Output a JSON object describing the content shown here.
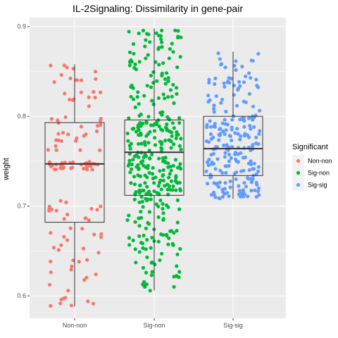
{
  "chart_data": {
    "type": "boxplot",
    "title": "IL-2Signaling: Dissimilarity in gene-pair",
    "xlabel": "",
    "ylabel": "weight",
    "categories": [
      "Non-non",
      "Sig-non",
      "Sig-sig"
    ],
    "ylim": [
      0.575,
      0.91
    ],
    "yticks": [
      0.6,
      0.7,
      0.8,
      0.9
    ],
    "grid": true,
    "legend": {
      "title": "Significant",
      "position": "right",
      "entries": [
        "Non-non",
        "Sig-non",
        "Sig-sig"
      ]
    },
    "colors": {
      "Non-non": "#F8766D",
      "Sig-non": "#00BA38",
      "Sig-sig": "#619CFF",
      "panel_background": "#EBEBEB",
      "grid_major": "#FFFFFF"
    },
    "boxes": [
      {
        "category": "Non-non",
        "whisker_min": 0.588,
        "q1": 0.682,
        "median": 0.747,
        "q3": 0.793,
        "whisker_max": 0.858
      },
      {
        "category": "Sig-non",
        "whisker_min": 0.606,
        "q1": 0.712,
        "median": 0.76,
        "q3": 0.796,
        "whisker_max": 0.898
      },
      {
        "category": "Sig-sig",
        "whisker_min": 0.708,
        "q1": 0.734,
        "median": 0.764,
        "q3": 0.8,
        "whisker_max": 0.872
      }
    ],
    "jitter_points": {
      "Non-non": {
        "count": 130,
        "range": [
          0.588,
          0.858
        ],
        "clusters": [
          [
            0.588,
            0.66
          ],
          [
            0.66,
            0.71
          ],
          [
            0.74,
            0.75
          ],
          [
            0.76,
            0.8
          ],
          [
            0.81,
            0.86
          ]
        ]
      },
      "Sig-non": {
        "count": 360,
        "range": [
          0.605,
          0.897
        ]
      },
      "Sig-sig": {
        "count": 230,
        "range": [
          0.708,
          0.872
        ]
      }
    }
  }
}
